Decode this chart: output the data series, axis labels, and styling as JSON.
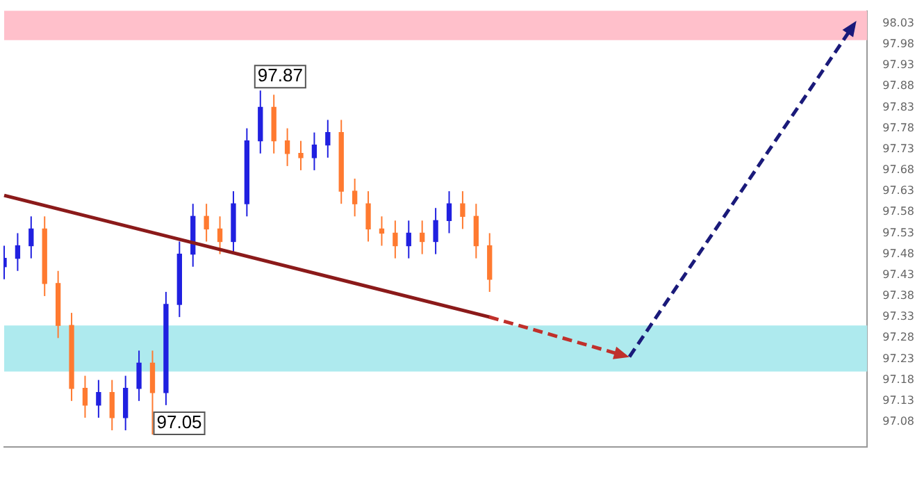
{
  "chart_data": {
    "type": "candlestick",
    "categories": [
      null,
      null,
      null,
      null,
      null,
      null,
      null,
      null,
      null,
      null,
      null,
      null,
      null,
      null,
      null,
      null,
      null,
      null,
      null,
      null,
      null,
      null,
      null,
      null,
      null,
      null,
      null,
      null,
      null,
      null,
      null,
      null,
      null,
      null,
      null,
      null,
      null,
      null,
      null,
      null,
      null,
      null,
      null,
      null,
      null,
      null,
      null,
      null,
      null,
      null,
      null,
      null,
      null,
      null,
      null,
      null,
      null,
      null,
      null,
      null,
      null,
      null,
      null,
      null,
      null
    ],
    "ohlc": [
      [
        97.45,
        97.5,
        97.42,
        97.47
      ],
      [
        97.47,
        97.53,
        97.44,
        97.5
      ],
      [
        97.5,
        97.57,
        97.47,
        97.54
      ],
      [
        97.54,
        97.57,
        97.38,
        97.41
      ],
      [
        97.41,
        97.44,
        97.28,
        97.31
      ],
      [
        97.31,
        97.34,
        97.13,
        97.16
      ],
      [
        97.16,
        97.19,
        97.09,
        97.12
      ],
      [
        97.12,
        97.18,
        97.09,
        97.15
      ],
      [
        97.15,
        97.18,
        97.06,
        97.09
      ],
      [
        97.09,
        97.19,
        97.06,
        97.16
      ],
      [
        97.16,
        97.25,
        97.13,
        97.22
      ],
      [
        97.22,
        97.25,
        97.05,
        97.15
      ],
      [
        97.15,
        97.39,
        97.12,
        97.36
      ],
      [
        97.36,
        97.51,
        97.33,
        97.48
      ],
      [
        97.48,
        97.6,
        97.45,
        97.57
      ],
      [
        97.57,
        97.6,
        97.51,
        97.54
      ],
      [
        97.54,
        97.57,
        97.48,
        97.51
      ],
      [
        97.51,
        97.63,
        97.48,
        97.6
      ],
      [
        97.6,
        97.78,
        97.57,
        97.75
      ],
      [
        97.75,
        97.87,
        97.72,
        97.83
      ],
      [
        97.83,
        97.86,
        97.72,
        97.75
      ],
      [
        97.75,
        97.78,
        97.69,
        97.72
      ],
      [
        97.72,
        97.75,
        97.68,
        97.71
      ],
      [
        97.71,
        97.77,
        97.68,
        97.74
      ],
      [
        97.74,
        97.8,
        97.71,
        97.77
      ],
      [
        97.77,
        97.8,
        97.6,
        97.63
      ],
      [
        97.63,
        97.66,
        97.57,
        97.6
      ],
      [
        97.6,
        97.63,
        97.51,
        97.54
      ],
      [
        97.54,
        97.57,
        97.5,
        97.53
      ],
      [
        97.53,
        97.56,
        97.47,
        97.5
      ],
      [
        97.5,
        97.56,
        97.47,
        97.53
      ],
      [
        97.53,
        97.56,
        97.48,
        97.51
      ],
      [
        97.51,
        97.59,
        97.48,
        97.56
      ],
      [
        97.56,
        97.63,
        97.53,
        97.6
      ],
      [
        97.6,
        97.63,
        97.54,
        97.57
      ],
      [
        97.57,
        97.6,
        97.47,
        97.5
      ],
      [
        97.5,
        97.53,
        97.39,
        97.42
      ],
      null,
      null,
      null,
      null,
      null,
      null,
      null,
      null,
      null,
      null,
      null,
      null,
      null,
      null,
      null,
      null,
      null,
      null,
      null,
      null,
      null,
      null,
      null,
      null,
      null,
      null,
      null,
      null
    ],
    "colors": [
      "#2020e0",
      "#2020e0",
      "#2020e0",
      "#ff7a30",
      "#ff7a30",
      "#ff7a30",
      "#ff7a30",
      "#2020e0",
      "#ff7a30",
      "#2020e0",
      "#2020e0",
      "#ff7a30",
      "#2020e0",
      "#2020e0",
      "#2020e0",
      "#ff7a30",
      "#ff7a30",
      "#2020e0",
      "#2020e0",
      "#2020e0",
      "#ff7a30",
      "#ff7a30",
      "#ff7a30",
      "#2020e0",
      "#2020e0",
      "#ff7a30",
      "#ff7a30",
      "#ff7a30",
      "#ff7a30",
      "#ff7a30",
      "#2020e0",
      "#ff7a30",
      "#2020e0",
      "#2020e0",
      "#ff7a30",
      "#ff7a30",
      "#ff7a30",
      null,
      null,
      null,
      null,
      null,
      null,
      null,
      null,
      null,
      null,
      null,
      null,
      null,
      null,
      null,
      null,
      null,
      null,
      null,
      null,
      null,
      null,
      null,
      null,
      null,
      null,
      null,
      null
    ],
    "series": [
      {
        "type": "line",
        "color": "#8b1a1a",
        "line_style": "solid",
        "values": [
          97.62,
          null,
          null,
          null,
          null,
          null,
          null,
          null,
          null,
          null,
          null,
          null,
          null,
          null,
          null,
          null,
          null,
          null,
          null,
          null,
          null,
          null,
          null,
          null,
          null,
          null,
          null,
          null,
          null,
          null,
          null,
          null,
          null,
          null,
          null,
          null,
          97.33,
          null,
          null,
          null,
          null,
          null,
          null,
          null,
          null,
          null,
          null,
          null,
          null,
          null,
          null,
          null,
          null,
          null,
          null,
          null,
          null,
          null,
          null,
          null,
          null,
          null,
          null,
          null,
          null
        ]
      }
    ],
    "ylim": [
      97.02,
      98.06
    ],
    "yticks": [
      97.08,
      97.13,
      97.18,
      97.23,
      97.28,
      97.33,
      97.38,
      97.43,
      97.48,
      97.53,
      97.58,
      97.63,
      97.68,
      97.73,
      97.78,
      97.83,
      97.88,
      97.93,
      97.98,
      98.03
    ],
    "bands": [
      {
        "axis": "y",
        "from": 97.99,
        "to": 98.06,
        "color": "#ffc0cb"
      },
      {
        "axis": "y",
        "from": 97.2,
        "to": 97.31,
        "color": "#aeeaee"
      }
    ],
    "annotations": [
      "97.87",
      "97.05"
    ],
    "grid": false,
    "legend": false
  }
}
